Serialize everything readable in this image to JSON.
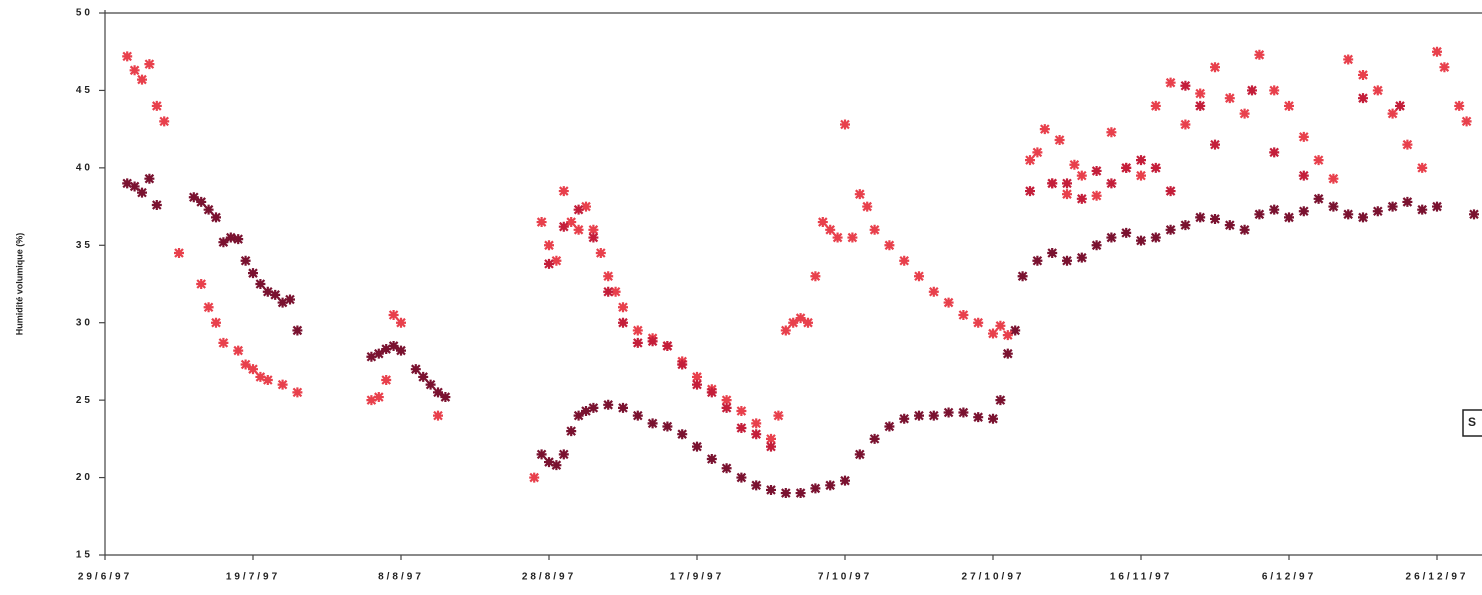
{
  "chart_data": {
    "type": "scatter",
    "y_label": "Humidité volumique (%)",
    "annotation": "S",
    "xlim": [
      0,
      186
    ],
    "ylim": [
      15,
      50
    ],
    "yticks": [
      15,
      20,
      25,
      30,
      35,
      40,
      45,
      50
    ],
    "xticks": [
      {
        "value": 0,
        "label": "29/6/97"
      },
      {
        "value": 20,
        "label": "19/7/97"
      },
      {
        "value": 40,
        "label": "8/8/97"
      },
      {
        "value": 60,
        "label": "28/8/97"
      },
      {
        "value": 80,
        "label": "17/9/97"
      },
      {
        "value": 100,
        "label": "7/10/97"
      },
      {
        "value": 120,
        "label": "27/10/97"
      },
      {
        "value": 140,
        "label": "16/11/97"
      },
      {
        "value": 160,
        "label": "6/12/97"
      },
      {
        "value": 180,
        "label": "26/12/97"
      }
    ],
    "series": [
      {
        "color": "#7a1230",
        "x": [
          3,
          4,
          5,
          6,
          7,
          12,
          13,
          14,
          15,
          16,
          17,
          18,
          19,
          20,
          21,
          22,
          23,
          24,
          25,
          26,
          36,
          37,
          38,
          39,
          40,
          42,
          43,
          44,
          45,
          46,
          59,
          60,
          61,
          62,
          63,
          64,
          65,
          66,
          68,
          70,
          72,
          74,
          76,
          78,
          80,
          82,
          84,
          86,
          88,
          90,
          92,
          94,
          96,
          98,
          100,
          102,
          104,
          106,
          108,
          110,
          112,
          114,
          116,
          118,
          120,
          121,
          122,
          123,
          124,
          126,
          128,
          130,
          132,
          134,
          136,
          138,
          140,
          142,
          144,
          146,
          148,
          150,
          152,
          154,
          156,
          158,
          160,
          162,
          164,
          166,
          168,
          170,
          172,
          174,
          176,
          178,
          180,
          185
        ],
        "values": [
          39,
          38.8,
          38.4,
          39.3,
          37.6,
          38.1,
          37.8,
          37.3,
          36.8,
          35.2,
          35.5,
          35.4,
          34,
          33.2,
          32.5,
          32,
          31.8,
          31.3,
          31.5,
          29.5,
          27.8,
          28,
          28.3,
          28.5,
          28.2,
          27,
          26.5,
          26,
          25.5,
          25.2,
          21.5,
          21,
          20.8,
          21.5,
          23,
          24,
          24.3,
          24.5,
          24.7,
          24.5,
          24,
          23.5,
          23.3,
          22.8,
          22,
          21.2,
          20.6,
          20,
          19.5,
          19.2,
          19,
          19,
          19.3,
          19.5,
          19.8,
          21.5,
          22.5,
          23.3,
          23.8,
          24,
          24,
          24.2,
          24.2,
          23.9,
          23.8,
          25,
          28,
          29.5,
          33,
          34,
          34.5,
          34,
          34.2,
          35,
          35.5,
          35.8,
          35.3,
          35.5,
          36,
          36.3,
          36.8,
          36.7,
          36.3,
          36,
          37,
          37.3,
          36.8,
          37.2,
          38,
          37.5,
          37,
          36.8,
          37.2,
          37.5,
          37.8,
          37.3,
          37.5,
          37
        ]
      },
      {
        "color": "#e8404c",
        "x": [
          3,
          4,
          5,
          6,
          7,
          8,
          10,
          13,
          14,
          15,
          16,
          18,
          19,
          20,
          21,
          22,
          24,
          26,
          36,
          37,
          38,
          39,
          40,
          45,
          58,
          59,
          60,
          61,
          62,
          63,
          64,
          65,
          66,
          67,
          68,
          69,
          70,
          72,
          74,
          76,
          78,
          80,
          82,
          84,
          86,
          88,
          90,
          91,
          92,
          93,
          94,
          95,
          96,
          97,
          98,
          99,
          100,
          101,
          102,
          103,
          104,
          106,
          108,
          110,
          112,
          114,
          116,
          118,
          120,
          121,
          122,
          125,
          126,
          127,
          128,
          129,
          130,
          131,
          132,
          134,
          136,
          138,
          140,
          142,
          144,
          146,
          148,
          150,
          152,
          154,
          156,
          158,
          160,
          162,
          164,
          166,
          168,
          170,
          172,
          174,
          176,
          178,
          180,
          181,
          183,
          184
        ],
        "values": [
          47.2,
          46.3,
          45.7,
          46.7,
          44,
          43,
          34.5,
          32.5,
          31,
          30,
          28.7,
          28.2,
          27.3,
          27,
          26.5,
          26.3,
          26,
          25.5,
          25,
          25.2,
          26.3,
          30.5,
          30,
          24,
          20,
          36.5,
          35,
          34,
          38.5,
          36.5,
          36,
          37.5,
          36,
          34.5,
          33,
          32,
          31,
          29.5,
          29,
          28.5,
          27.5,
          26.5,
          25.7,
          25,
          24.3,
          23.5,
          22.5,
          24,
          29.5,
          30,
          30.3,
          30,
          33,
          36.5,
          36,
          35.5,
          42.8,
          35.5,
          38.3,
          37.5,
          36,
          35,
          34,
          33,
          32,
          31.3,
          30.5,
          30,
          29.3,
          29.8,
          29.2,
          40.5,
          41,
          42.5,
          39,
          41.8,
          38.3,
          40.2,
          39.5,
          38.2,
          42.3,
          40,
          39.5,
          44,
          45.5,
          42.8,
          44.8,
          46.5,
          44.5,
          43.5,
          47.3,
          45,
          44,
          42,
          40.5,
          39.3,
          47,
          46,
          45,
          43.5,
          41.5,
          40,
          47.5,
          46.5,
          44,
          43
        ]
      },
      {
        "color": "#c41e3a",
        "x": [
          60,
          62,
          64,
          66,
          68,
          70,
          72,
          74,
          76,
          78,
          80,
          82,
          84,
          86,
          88,
          90,
          125,
          128,
          130,
          132,
          134,
          136,
          138,
          140,
          142,
          144,
          146,
          148,
          150,
          155,
          158,
          162,
          170,
          175
        ],
        "values": [
          33.8,
          36.2,
          37.3,
          35.5,
          32,
          30,
          28.7,
          28.8,
          28.5,
          27.3,
          26,
          25.5,
          24.5,
          23.2,
          22.8,
          22,
          38.5,
          39,
          39,
          38,
          39.8,
          39,
          40,
          40.5,
          40,
          38.5,
          45.3,
          44,
          41.5,
          45,
          41,
          39.5,
          44.5,
          44
        ]
      }
    ]
  }
}
